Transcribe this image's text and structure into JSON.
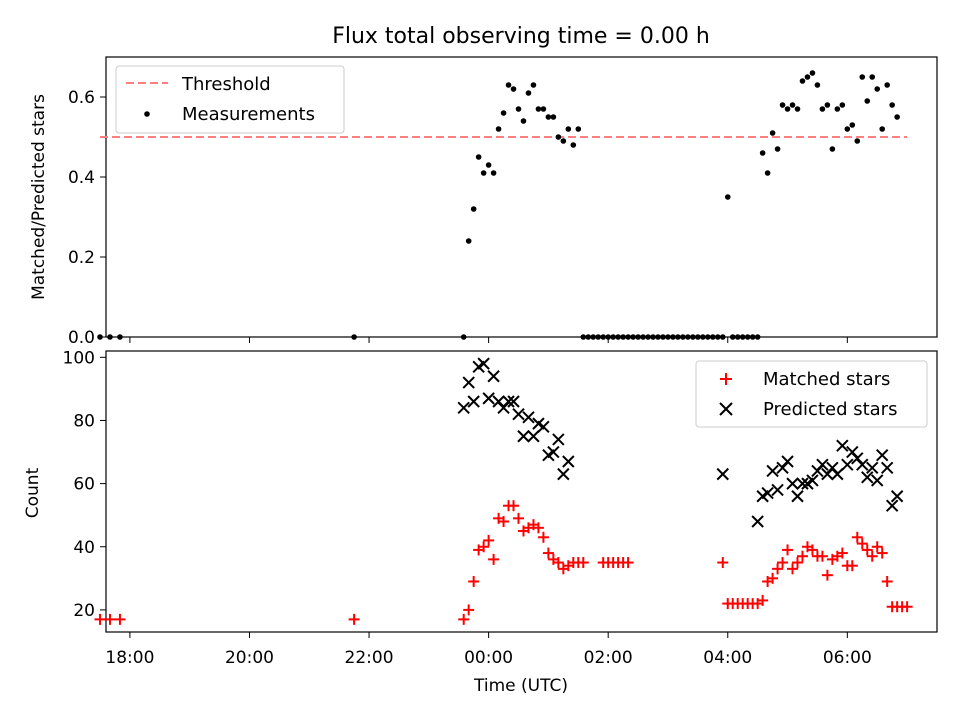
{
  "title": "Flux total observing time = 0.00 h",
  "colors": {
    "threshold": "#ff7f7f",
    "measurement": "#000000",
    "matched": "#ff0000",
    "predicted": "#000000"
  },
  "chart_data": [
    {
      "type": "scatter",
      "ylabel": "Matched/Predicted stars",
      "ylim": [
        0,
        0.7
      ],
      "yticks": [
        "0.0",
        "0.2",
        "0.4",
        "0.6"
      ],
      "legend": {
        "placement": "top-left",
        "entries": [
          "Threshold",
          "Measurements"
        ]
      },
      "threshold": {
        "name": "Threshold",
        "value": 0.5,
        "x_range": [
          "17:30",
          "07:00"
        ]
      },
      "series": [
        {
          "name": "Measurements",
          "marker": "dot",
          "x": [
            "17:30",
            "17:40",
            "17:50",
            "21:45",
            "23:35",
            "23:40",
            "23:45",
            "23:50",
            "23:55",
            "00:00",
            "00:05",
            "00:10",
            "00:15",
            "00:20",
            "00:25",
            "00:30",
            "00:35",
            "00:40",
            "00:45",
            "00:50",
            "00:55",
            "01:00",
            "01:05",
            "01:10",
            "01:15",
            "01:20",
            "01:25",
            "01:30",
            "01:35",
            "01:40",
            "01:45",
            "01:50",
            "01:55",
            "02:00",
            "02:05",
            "02:10",
            "02:15",
            "02:20",
            "02:25",
            "02:30",
            "02:35",
            "02:40",
            "02:45",
            "02:50",
            "02:55",
            "03:00",
            "03:05",
            "03:10",
            "03:15",
            "03:20",
            "03:25",
            "03:30",
            "03:35",
            "03:40",
            "03:45",
            "03:50",
            "03:55",
            "04:00",
            "04:05",
            "04:10",
            "04:15",
            "04:20",
            "04:25",
            "04:30",
            "04:35",
            "04:40",
            "04:45",
            "04:50",
            "04:55",
            "05:00",
            "05:05",
            "05:10",
            "05:15",
            "05:20",
            "05:25",
            "05:30",
            "05:35",
            "05:40",
            "05:45",
            "05:50",
            "05:55",
            "06:00",
            "06:05",
            "06:10",
            "06:15",
            "06:20",
            "06:25",
            "06:30",
            "06:35",
            "06:40",
            "06:45",
            "06:50"
          ],
          "y": [
            0,
            0,
            0,
            0,
            0,
            0.24,
            0.32,
            0.45,
            0.41,
            0.43,
            0.41,
            0.52,
            0.56,
            0.63,
            0.62,
            0.57,
            0.54,
            0.61,
            0.63,
            0.57,
            0.57,
            0.55,
            0.55,
            0.5,
            0.49,
            0.52,
            0.48,
            0.52,
            0,
            0,
            0,
            0,
            0,
            0,
            0,
            0,
            0,
            0,
            0,
            0,
            0,
            0,
            0,
            0,
            0,
            0,
            0,
            0,
            0,
            0,
            0,
            0,
            0,
            0,
            0,
            0,
            0,
            0.35,
            0,
            0,
            0,
            0,
            0,
            0,
            0.46,
            0.41,
            0.51,
            0.47,
            0.58,
            0.57,
            0.58,
            0.57,
            0.64,
            0.65,
            0.66,
            0.63,
            0.57,
            0.58,
            0.47,
            0.57,
            0.58,
            0.52,
            0.53,
            0.49,
            0.65,
            0.59,
            0.65,
            0.62,
            0.52,
            0.63,
            0.58,
            0.55
          ]
        }
      ]
    },
    {
      "type": "scatter",
      "xlabel": "Time (UTC)",
      "ylabel": "Count",
      "ylim": [
        13,
        102
      ],
      "xticks": [
        "18:00",
        "20:00",
        "22:00",
        "00:00",
        "02:00",
        "04:00",
        "06:00"
      ],
      "yticks": [
        "20",
        "40",
        "60",
        "80",
        "100"
      ],
      "legend": {
        "placement": "top-right",
        "entries": [
          "Matched stars",
          "Predicted stars"
        ]
      },
      "series": [
        {
          "name": "Matched stars",
          "marker": "plus",
          "x": [
            "17:30",
            "17:40",
            "17:50",
            "21:45",
            "23:35",
            "23:40",
            "23:45",
            "23:50",
            "23:55",
            "00:00",
            "00:05",
            "00:10",
            "00:15",
            "00:20",
            "00:25",
            "00:30",
            "00:35",
            "00:40",
            "00:45",
            "00:50",
            "00:55",
            "01:00",
            "01:05",
            "01:10",
            "01:15",
            "01:20",
            "01:25",
            "01:30",
            "01:35",
            "01:55",
            "02:00",
            "02:05",
            "02:10",
            "02:15",
            "02:20",
            "03:55",
            "04:00",
            "04:05",
            "04:10",
            "04:15",
            "04:20",
            "04:25",
            "04:30",
            "04:35",
            "04:40",
            "04:45",
            "04:50",
            "04:55",
            "05:00",
            "05:05",
            "05:10",
            "05:15",
            "05:20",
            "05:25",
            "05:30",
            "05:35",
            "05:40",
            "05:45",
            "05:50",
            "05:55",
            "06:00",
            "06:05",
            "06:10",
            "06:15",
            "06:20",
            "06:25",
            "06:30",
            "06:35",
            "06:40",
            "06:45",
            "06:50",
            "06:55",
            "07:00"
          ],
          "y": [
            17,
            17,
            17,
            17,
            17,
            20,
            29,
            39,
            40,
            42,
            36,
            49,
            48,
            53,
            53,
            49,
            45,
            46,
            47,
            46,
            43,
            38,
            36,
            35,
            33,
            34,
            35,
            35,
            35,
            35,
            35,
            35,
            35,
            35,
            35,
            35,
            22,
            22,
            22,
            22,
            22,
            22,
            22,
            23,
            29,
            30,
            33,
            35,
            39,
            33,
            35,
            37,
            40,
            39,
            37,
            37,
            31,
            36,
            37,
            38,
            34,
            34,
            43,
            41,
            39,
            37,
            40,
            38,
            29,
            21,
            21,
            21,
            21
          ]
        },
        {
          "name": "Predicted stars",
          "marker": "x",
          "x": [
            "23:35",
            "23:40",
            "23:45",
            "23:50",
            "23:55",
            "00:00",
            "00:05",
            "00:10",
            "00:15",
            "00:20",
            "00:25",
            "00:30",
            "00:35",
            "00:40",
            "00:45",
            "00:50",
            "00:55",
            "01:00",
            "01:05",
            "01:10",
            "01:15",
            "01:20",
            "03:55",
            "04:30",
            "04:35",
            "04:40",
            "04:45",
            "04:50",
            "04:55",
            "05:00",
            "05:05",
            "05:10",
            "05:15",
            "05:20",
            "05:25",
            "05:30",
            "05:35",
            "05:40",
            "05:45",
            "05:50",
            "05:55",
            "06:00",
            "06:05",
            "06:10",
            "06:15",
            "06:20",
            "06:25",
            "06:30",
            "06:35",
            "06:40",
            "06:45",
            "06:50"
          ],
          "y": [
            84,
            92,
            86,
            97,
            98,
            87,
            94,
            86,
            84,
            86,
            86,
            82,
            75,
            81,
            75,
            79,
            78,
            69,
            70,
            74,
            63,
            67,
            63,
            48,
            56,
            57,
            64,
            58,
            65,
            67,
            60,
            56,
            60,
            60,
            61,
            64,
            66,
            63,
            65,
            63,
            72,
            66,
            70,
            68,
            66,
            62,
            65,
            61,
            69,
            65,
            53,
            56
          ]
        }
      ]
    }
  ]
}
